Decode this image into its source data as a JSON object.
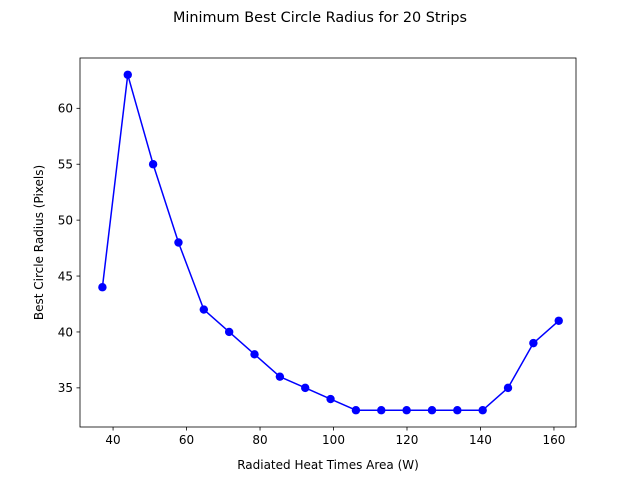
{
  "chart_data": {
    "type": "line",
    "title": "Minimum Best Circle Radius for 20 Strips",
    "xlabel": "Radiated Heat Times Area (W)",
    "ylabel": "Best Circle Radius (Pixels)",
    "xlim": [
      31,
      166
    ],
    "ylim": [
      31.5,
      64.5
    ],
    "x_ticks": [
      40,
      60,
      80,
      100,
      120,
      140,
      160
    ],
    "y_ticks": [
      35,
      40,
      45,
      50,
      55,
      60
    ],
    "grid": false,
    "legend": "none",
    "series": [
      {
        "color": "#0000ff",
        "marker": "circle",
        "x": [
          37.1,
          44.0,
          50.9,
          57.8,
          64.7,
          71.6,
          78.5,
          85.4,
          92.3,
          99.2,
          106.1,
          113.0,
          119.9,
          126.8,
          133.7,
          140.6,
          147.5,
          154.4,
          161.3
        ],
        "y": [
          44,
          63,
          55,
          48,
          42,
          40,
          38,
          36,
          35,
          34,
          33,
          33,
          33,
          33,
          33,
          33,
          35,
          39,
          41
        ]
      }
    ]
  }
}
